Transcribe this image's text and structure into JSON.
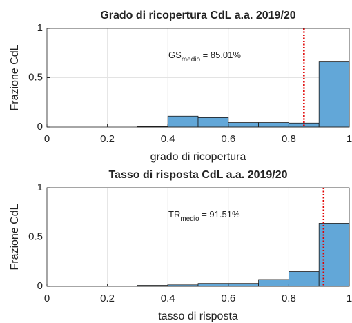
{
  "chart_data": [
    {
      "type": "histogram",
      "title": "Grado di ricopertura CdL a.a. 2019/20",
      "xlabel": "grado di ricopertura",
      "ylabel": "Frazione CdL",
      "bins": [
        0,
        0.1,
        0.2,
        0.3,
        0.4,
        0.5,
        0.6,
        0.7,
        0.8,
        0.9,
        1.0
      ],
      "values": [
        0,
        0,
        0,
        0.005,
        0.11,
        0.095,
        0.045,
        0.045,
        0.04,
        0.66
      ],
      "color": "#62a7d8",
      "xlim": [
        0,
        1
      ],
      "ylim": [
        0,
        1
      ],
      "xticks": [
        0,
        0.2,
        0.4,
        0.6,
        0.8,
        1
      ],
      "yticks": [
        0,
        0.5,
        1
      ],
      "grid": true,
      "mean_line": 0.8501,
      "mean_color": "#e00000",
      "annotation": {
        "main": "GS",
        "sub": "medio",
        "rest": " = 85.01%"
      }
    },
    {
      "type": "histogram",
      "title": "Tasso di risposta CdL a.a. 2019/20",
      "xlabel": "tasso di risposta",
      "ylabel": "Frazione CdL",
      "bins": [
        0,
        0.1,
        0.2,
        0.3,
        0.4,
        0.5,
        0.6,
        0.7,
        0.8,
        0.9,
        1.0
      ],
      "values": [
        0,
        0,
        0,
        0.01,
        0.015,
        0.03,
        0.03,
        0.07,
        0.15,
        0.64
      ],
      "color": "#62a7d8",
      "xlim": [
        0,
        1
      ],
      "ylim": [
        0,
        1
      ],
      "xticks": [
        0,
        0.2,
        0.4,
        0.6,
        0.8,
        1
      ],
      "yticks": [
        0,
        0.5,
        1
      ],
      "grid": true,
      "mean_line": 0.9151,
      "mean_color": "#e00000",
      "annotation": {
        "main": "TR",
        "sub": "medio",
        "rest": " = 91.51%"
      }
    }
  ]
}
